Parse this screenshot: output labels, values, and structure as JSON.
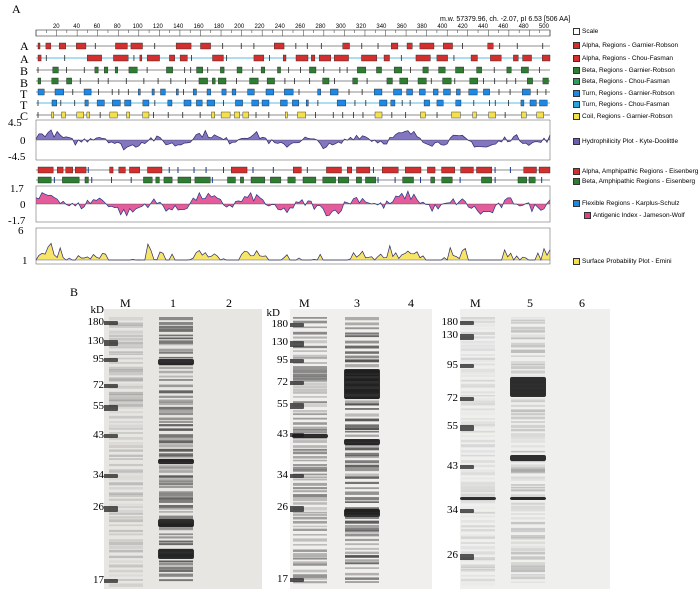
{
  "panel_a": {
    "label": "A",
    "header": "m.w. 57379.96, ch. -2.07, pI 6.53 [506 AA]",
    "scale_ticks": [
      "20",
      "40",
      "60",
      "80",
      "100",
      "120",
      "140",
      "160",
      "180",
      "200",
      "220",
      "240",
      "260",
      "280",
      "300",
      "320",
      "340",
      "360",
      "380",
      "400",
      "420",
      "440",
      "460",
      "480",
      "500"
    ],
    "row_letters": [
      "A",
      "A",
      "B",
      "B",
      "T",
      "T",
      "C"
    ],
    "legend": [
      {
        "text": "Scale",
        "color": "#ffffff"
      },
      {
        "text": "Alpha, Regions - Garnier-Robson",
        "color": "#d32f2f"
      },
      {
        "text": "Alpha, Regions - Chou-Fasman",
        "color": "#d32f2f"
      },
      {
        "text": "Beta, Regions - Garnier-Robson",
        "color": "#2e7d32"
      },
      {
        "text": "Beta, Regions - Chou-Fasman",
        "color": "#2e9e5e"
      },
      {
        "text": "Turn, Regions - Garnier-Robson",
        "color": "#1e88e5"
      },
      {
        "text": "Turn, Regions - Chou-Fasman",
        "color": "#29a3d9"
      },
      {
        "text": "Coil, Regions - Garnier-Robson",
        "color": "#f4e04d"
      },
      {
        "text": "Hydrophilicity Plot - Kyte-Doolittle",
        "color": "#6d5db5"
      },
      {
        "text": "Alpha, Amphipathic Regions - Eisenberg",
        "color": "#d32f2f"
      },
      {
        "text": "Beta, Amphipathic Regions - Eisenberg",
        "color": "#2e7d32"
      },
      {
        "text": "Flexible Regions - Karplus-Schulz",
        "color": "#1e88e5"
      },
      {
        "text": "Antigenic Index - Jameson-Wolf",
        "color": "#e0408a"
      },
      {
        "text": "Surface Probability Plot - Emini",
        "color": "#f4e04d"
      }
    ],
    "hydro_ticks": [
      "4.5",
      "0",
      "-4.5"
    ],
    "antigenic_ticks": [
      "1.7",
      "0",
      "-1.7"
    ],
    "surface_ticks": [
      "6",
      "1"
    ],
    "colors": {
      "alpha": "#d32f2f",
      "beta": "#2e7d32",
      "turn": "#1e88e5",
      "coil": "#f4e04d",
      "hydro": "#6d5db5",
      "antigenic": "#e0408a",
      "surface": "#f4e04d"
    }
  },
  "panel_b": {
    "label": "B",
    "kd_label": "kD",
    "gel1": {
      "lanes": [
        "M",
        "1",
        "2"
      ],
      "markers": [
        "180",
        "130",
        "95",
        "72",
        "55",
        "43",
        "34",
        "26",
        "17"
      ]
    },
    "gel2": {
      "lanes": [
        "M",
        "3",
        "4"
      ],
      "markers": [
        "180",
        "130",
        "95",
        "72",
        "55",
        "43",
        "34",
        "26",
        "17"
      ]
    },
    "gel3": {
      "lanes": [
        "M",
        "5",
        "6"
      ],
      "markers": [
        "180",
        "130",
        "95",
        "72",
        "55",
        "43",
        "34",
        "26"
      ]
    }
  }
}
